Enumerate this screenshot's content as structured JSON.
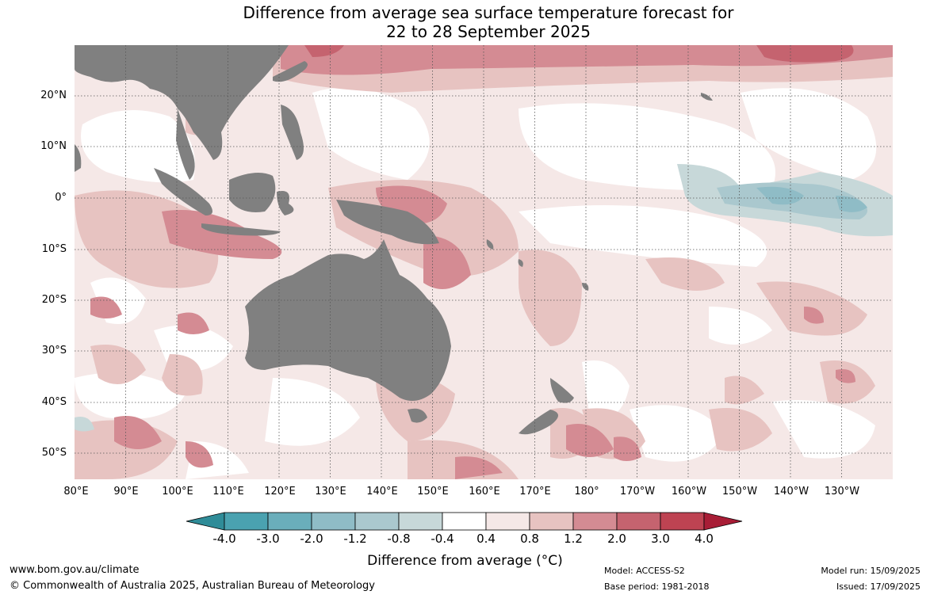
{
  "title": {
    "line1": "Difference from average sea surface temperature forecast for",
    "line2": "22 to 28 September 2025"
  },
  "map": {
    "lat_labels": [
      "20°N",
      "10°N",
      "0°",
      "10°S",
      "20°S",
      "30°S",
      "40°S",
      "50°S"
    ],
    "lon_labels": [
      "80°E",
      "90°E",
      "100°E",
      "110°E",
      "120°E",
      "130°E",
      "140°E",
      "150°E",
      "160°E",
      "170°E",
      "180°",
      "170°W",
      "160°W",
      "150°W",
      "140°W",
      "130°W"
    ],
    "land_color": "#808080",
    "region_labels_shown": false
  },
  "colorbar": {
    "ticks": [
      "-4.0",
      "-3.0",
      "-2.0",
      "-1.2",
      "-0.8",
      "-0.4",
      "0.4",
      "0.8",
      "1.2",
      "2.0",
      "3.0",
      "4.0"
    ],
    "colors": [
      "#2f8c98",
      "#4aa2b0",
      "#6aaebb",
      "#8fbcc6",
      "#aac8ce",
      "#c7d8d9",
      "#ffffff",
      "#f5e8e7",
      "#e7c3c1",
      "#d48b93",
      "#c5636f",
      "#be4352",
      "#a81d36"
    ],
    "label": "Difference from average ($^\\circ$C)",
    "label_display": "Difference from average (°C)"
  },
  "footer": {
    "url": "www.bom.gov.au/climate",
    "copyright": "© Commonwealth of Australia 2025, Australian Bureau of Meteorology",
    "model": "Model: ACCESS-S2",
    "base_period": "Base period: 1981-2018",
    "model_run": "Model run: 15/09/2025",
    "issued": "Issued: 17/09/2025"
  }
}
